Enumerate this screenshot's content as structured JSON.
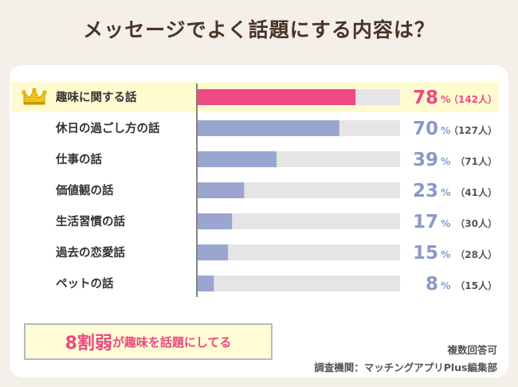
{
  "title": "メッセージでよく話題にする内容は？",
  "colors": {
    "highlight_bar": "#ef4a83",
    "highlight_text": "#ef4a83",
    "bar": "#9aa6cf",
    "value_text": "#8c98c8",
    "track": "#e5e5e5",
    "highlight_row_bg": "#fffbd0",
    "crown": "#f1c21b"
  },
  "icons": {
    "top_item": "crown-icon"
  },
  "chart_data": {
    "type": "bar",
    "orientation": "horizontal",
    "categories": [
      "趣味に関する話",
      "休日の過ごし方の話",
      "仕事の話",
      "価値観の話",
      "生活習慣の話",
      "過去の恋愛話",
      "ペットの話"
    ],
    "values": [
      78,
      70,
      39,
      23,
      17,
      15,
      8
    ],
    "counts": [
      "142人",
      "127人",
      "71人",
      "41人",
      "30人",
      "28人",
      "15人"
    ],
    "value_unit": "%",
    "xlim": [
      0,
      100
    ],
    "highlight_index": 0
  },
  "callout": {
    "big": "8割弱",
    "rest": "が趣味を話題にしてる"
  },
  "notes": {
    "line1": "複数回答可",
    "line2": "調査機関：マッチングアプリPlus編集部"
  }
}
